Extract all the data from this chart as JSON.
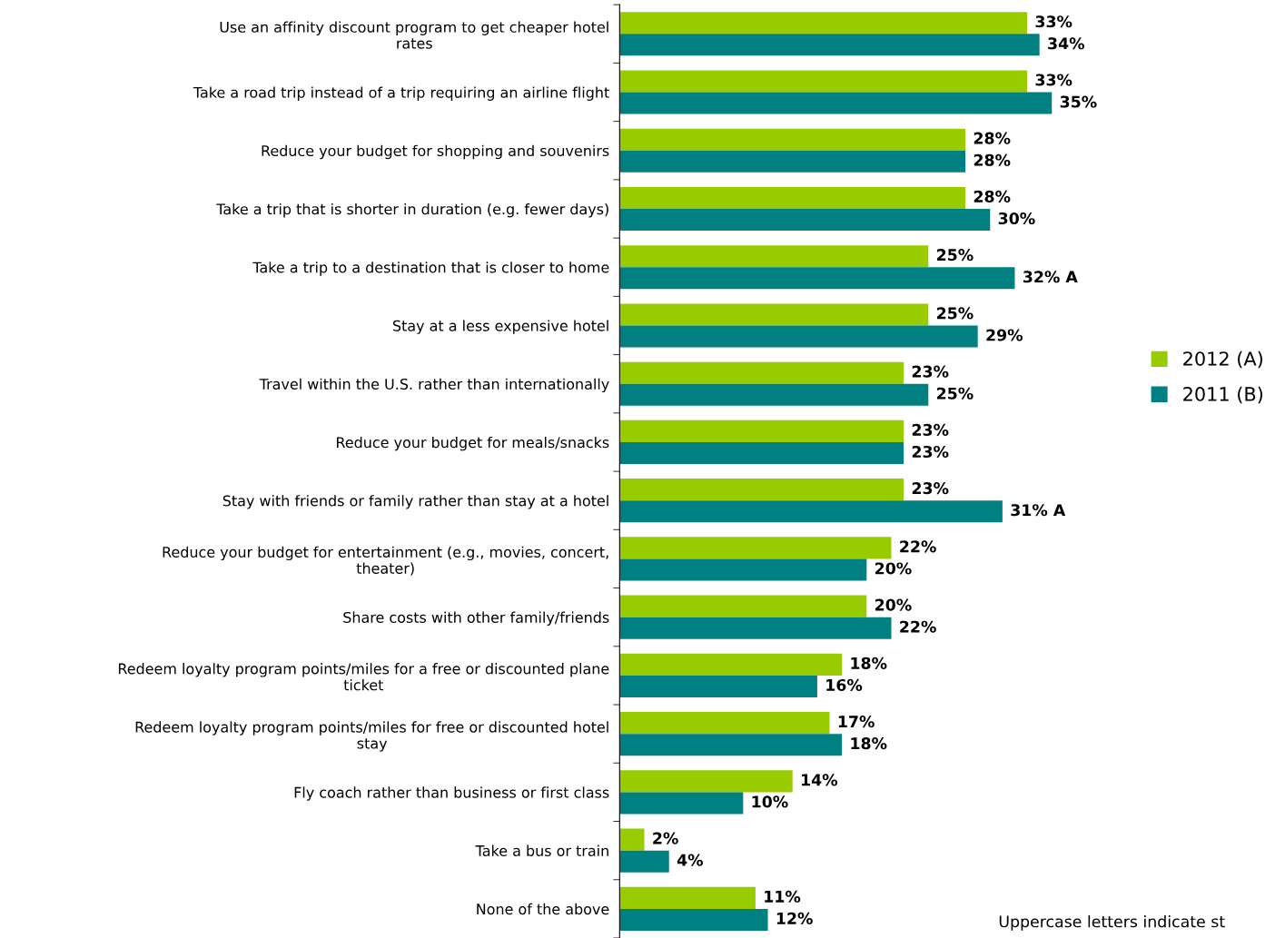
{
  "chart_data": {
    "type": "bar",
    "orientation": "horizontal",
    "legend": "right",
    "categories": [
      "Use an affinity discount program to get cheaper hotel\nrates",
      "Take a road trip instead of a trip requiring an airline flight",
      "Reduce your budget for shopping and souvenirs",
      "Take a trip that is shorter in duration (e.g. fewer days)",
      "Take a trip to a destination that is closer to home",
      "Stay at a less expensive hotel",
      "Travel within the U.S. rather than internationally",
      "Reduce your budget for meals/snacks",
      "Stay with friends or family rather than stay at a hotel",
      "Reduce your budget for entertainment (e.g., movies, concert,\ntheater)",
      "Share costs with other family/friends",
      "Redeem loyalty program points/miles for a free or discounted plane\nticket",
      "Redeem loyalty program points/miles for free or discounted hotel\nstay",
      "Fly coach rather than business or first class",
      "Take a bus or train",
      "None of the above"
    ],
    "series": [
      {
        "name": "2012 (A)",
        "color": "#99cc00",
        "values": [
          33,
          33,
          28,
          28,
          25,
          25,
          23,
          23,
          23,
          22,
          20,
          18,
          17,
          14,
          2,
          11
        ],
        "value_labels": [
          "33%",
          "33%",
          "28%",
          "28%",
          "25%",
          "25%",
          "23%",
          "23%",
          "23%",
          "22%",
          "20%",
          "18%",
          "17%",
          "14%",
          "2%",
          "11%"
        ]
      },
      {
        "name": "2011 (B)",
        "color": "#008080",
        "values": [
          34,
          35,
          28,
          30,
          32,
          29,
          25,
          23,
          31,
          20,
          22,
          16,
          18,
          10,
          4,
          12
        ],
        "value_labels": [
          "34%",
          "35%",
          "28%",
          "30%",
          "32% A",
          "29%",
          "25%",
          "23%",
          "31% A",
          "20%",
          "22%",
          "16%",
          "18%",
          "10%",
          "4%",
          "12%"
        ]
      }
    ],
    "annotations": [
      "Uppercase letters indicate st"
    ]
  }
}
